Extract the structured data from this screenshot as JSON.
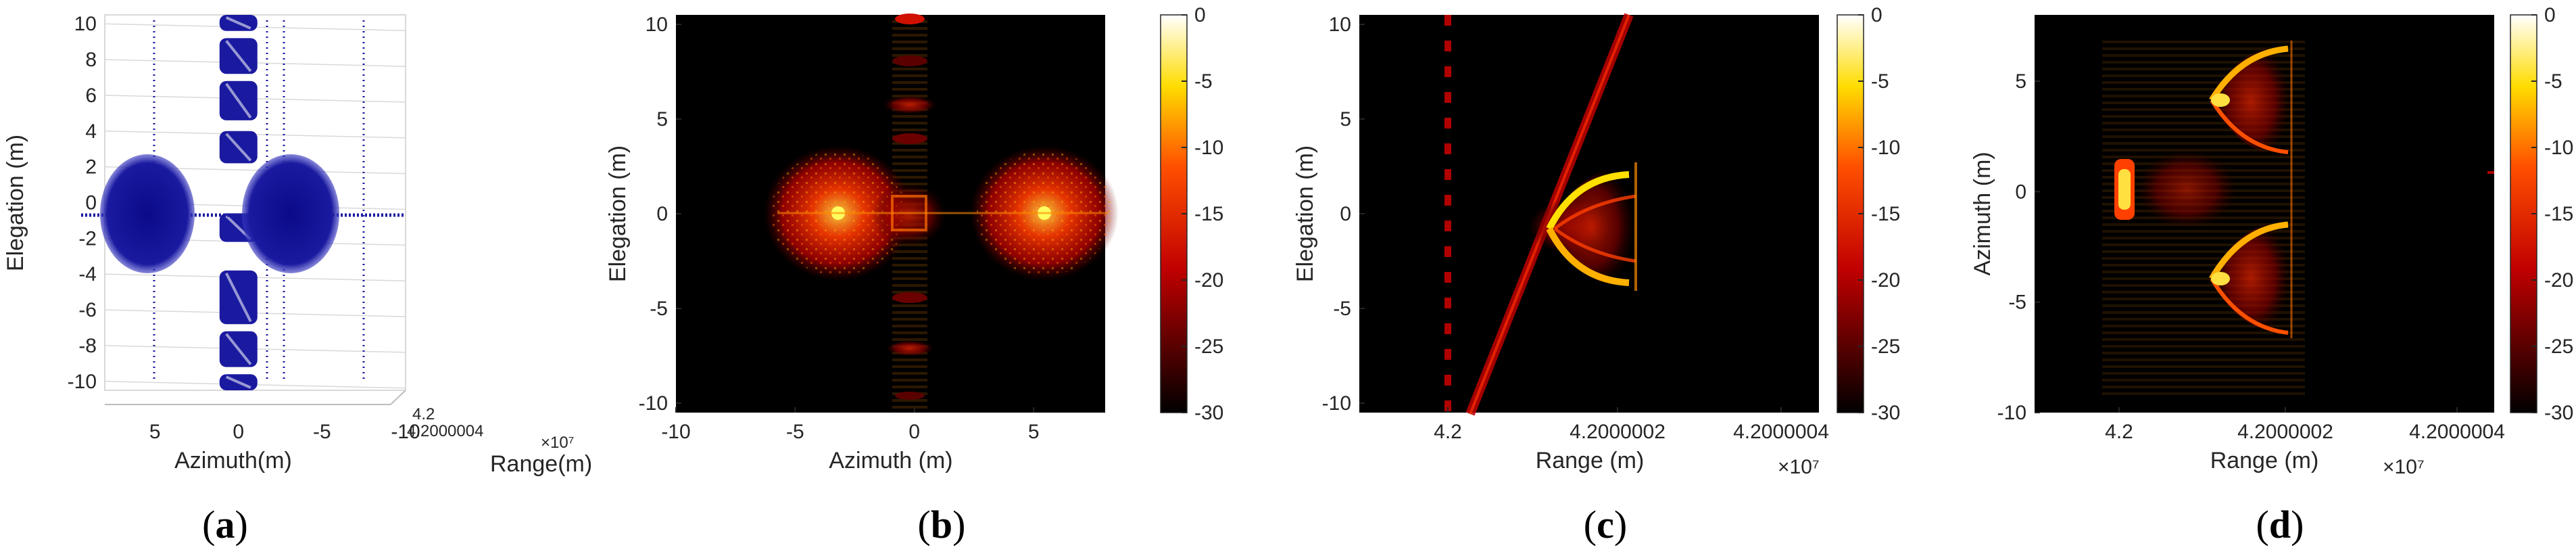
{
  "chart_data": [
    {
      "panel": "a",
      "caption": "(a)",
      "type": "scatter",
      "marker_color": "#1a1aa0",
      "xlabel": "Azimuth(m)",
      "ylabel": "Elegation (m)",
      "zlabel": "Range(m)",
      "xlim": [
        8,
        -10
      ],
      "ylim": [
        -10.5,
        10.5
      ],
      "xticks": [
        "5",
        "0",
        "-5",
        "-10"
      ],
      "xtick_values": [
        5,
        0,
        -5,
        -10
      ],
      "yticks": [
        "10",
        "8",
        "6",
        "4",
        "2",
        "0",
        "-2",
        "-4",
        "-6",
        "-8",
        "-10"
      ],
      "ytick_values": [
        10,
        8,
        6,
        4,
        2,
        0,
        -2,
        -4,
        -6,
        -8,
        -10
      ],
      "zticks": [
        "4.2",
        "4.2000004"
      ],
      "zexponent": "×10⁷",
      "clusters": [
        {
          "label": "left-disk",
          "cx": 4,
          "cy": 0.3,
          "rx": 2.5,
          "ry": 3.4
        },
        {
          "label": "right-disk",
          "cx": -4,
          "cy": 0.3,
          "rx": 2.5,
          "ry": 3.4
        },
        {
          "label": "central-column",
          "cx": 0,
          "cy": 0,
          "rx": 1.2,
          "ry": 10.5
        }
      ]
    },
    {
      "panel": "b",
      "caption": "(b)",
      "type": "heatmap",
      "xlabel": "Azimuth (m)",
      "ylabel": "Elegation (m)",
      "xlim": [
        -10,
        8
      ],
      "ylim": [
        -10.5,
        10.5
      ],
      "xticks": [
        "-10",
        "-5",
        "0",
        "5"
      ],
      "xtick_values": [
        -10,
        -5,
        0,
        5
      ],
      "yticks": [
        "10",
        "5",
        "0",
        "-5",
        "-10"
      ],
      "ytick_values": [
        10,
        5,
        0,
        -5,
        -10
      ],
      "colorbar_ticks": [
        "0",
        "-5",
        "-10",
        "-15",
        "-20",
        "-25",
        "-30"
      ],
      "colorbar_range": [
        -30,
        0
      ],
      "colormap": "hot"
    },
    {
      "panel": "c",
      "caption": "(c)",
      "type": "heatmap",
      "xlabel": "Range (m)",
      "ylabel": "Elegation (m)",
      "xexponent": "×10⁷",
      "xticks": [
        "4.2",
        "4.2000002",
        "4.2000004"
      ],
      "yticks": [
        "10",
        "5",
        "0",
        "-5",
        "-10"
      ],
      "ytick_values": [
        10,
        5,
        0,
        -5,
        -10
      ],
      "ylim": [
        -10.5,
        10.5
      ],
      "colorbar_ticks": [
        "0",
        "-5",
        "-10",
        "-15",
        "-20",
        "-25",
        "-30"
      ],
      "colorbar_range": [
        -30,
        0
      ],
      "colormap": "hot"
    },
    {
      "panel": "d",
      "caption": "(d)",
      "type": "heatmap",
      "xlabel": "Range (m)",
      "ylabel": "Azimuth (m)",
      "xexponent": "×10⁷",
      "xticks": [
        "4.2",
        "4.2000002",
        "4.2000004"
      ],
      "yticks": [
        "5",
        "0",
        "-5",
        "-10"
      ],
      "ytick_values": [
        5,
        0,
        -5,
        -10
      ],
      "ylim": [
        -10,
        8
      ],
      "colorbar_ticks": [
        "0",
        "-5",
        "-10",
        "-15",
        "-20",
        "-25",
        "-30"
      ],
      "colorbar_range": [
        -30,
        0
      ],
      "colormap": "hot"
    }
  ]
}
